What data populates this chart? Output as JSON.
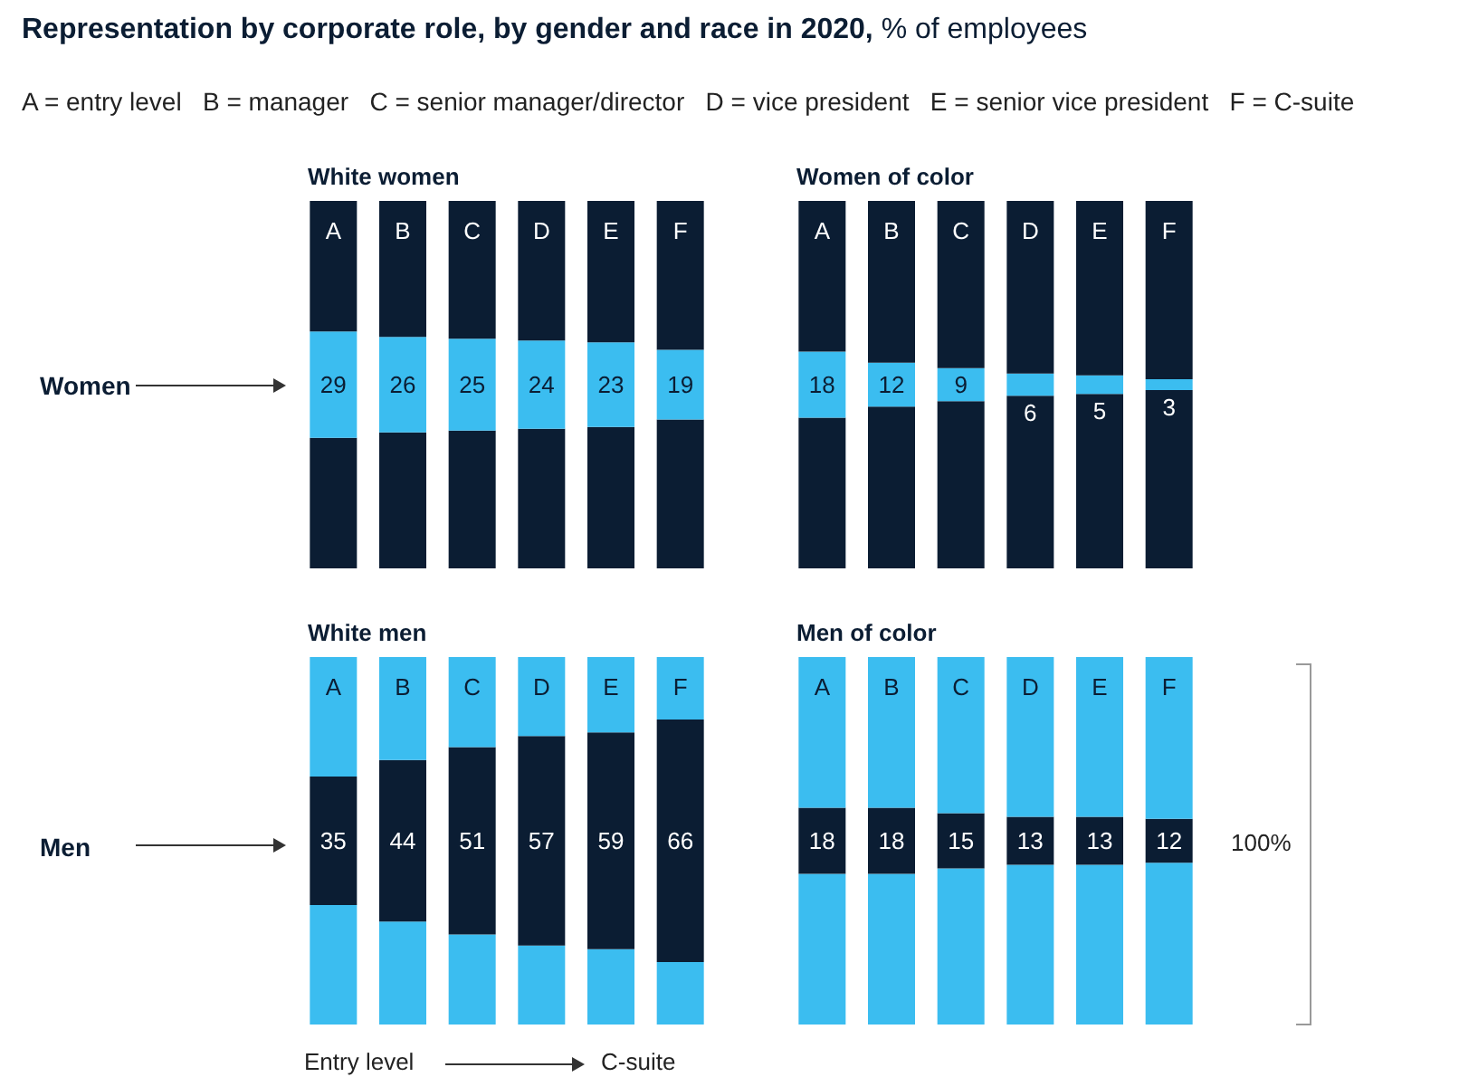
{
  "chart_data": [
    {
      "type": "bar",
      "stacked": true,
      "title": "White women",
      "categories": [
        "A",
        "B",
        "C",
        "D",
        "E",
        "F"
      ],
      "series": [
        {
          "color": "#0b1d33",
          "values": [
            35.5,
            37,
            37.5,
            38,
            38.5,
            40.5
          ]
        },
        {
          "color": "#3bbdf0",
          "values": [
            29,
            26,
            25,
            24,
            23,
            19
          ],
          "value_labels": [
            "29",
            "26",
            "25",
            "24",
            "23",
            "19"
          ]
        },
        {
          "color": "#0b1d33",
          "values": [
            35.5,
            37,
            37.5,
            38,
            38.5,
            40.5
          ]
        }
      ],
      "ylim": [
        0,
        100
      ],
      "tick_labels": "x",
      "annotations": [
        "Representation by corporate role, by gender and race in 2020,",
        "% of employees",
        "A = entry level   B = manager   C = senior manager/director   D = vice president   E = senior vice president   F = C-suite",
        "Women"
      ]
    },
    {
      "type": "bar",
      "stacked": true,
      "title": "Women of color",
      "categories": [
        "A",
        "B",
        "C",
        "D",
        "E",
        "F"
      ],
      "series": [
        {
          "color": "#0b1d33",
          "values": [
            41,
            44,
            45.5,
            47,
            47.5,
            48.5
          ]
        },
        {
          "color": "#3bbdf0",
          "values": [
            18,
            12,
            9,
            6,
            5,
            3
          ],
          "value_labels": [
            "18",
            "12",
            "9",
            "6",
            "5",
            "3"
          ]
        },
        {
          "color": "#0b1d33",
          "values": [
            41,
            44,
            45.5,
            47,
            47.5,
            48.5
          ]
        }
      ],
      "ylim": [
        0,
        100
      ],
      "tick_labels": "x"
    },
    {
      "type": "bar",
      "stacked": true,
      "title": "White men",
      "categories": [
        "A",
        "B",
        "C",
        "D",
        "E",
        "F"
      ],
      "series": [
        {
          "color": "#3bbdf0",
          "values": [
            32.5,
            28,
            24.5,
            21.5,
            20.5,
            17
          ]
        },
        {
          "color": "#0b1d33",
          "values": [
            35,
            44,
            51,
            57,
            59,
            66
          ],
          "value_labels": [
            "35",
            "44",
            "51",
            "57",
            "59",
            "66"
          ]
        },
        {
          "color": "#3bbdf0",
          "values": [
            32.5,
            28,
            24.5,
            21.5,
            20.5,
            17
          ]
        }
      ],
      "ylim": [
        0,
        100
      ],
      "tick_labels": "x",
      "annotations": [
        "Men",
        "Entry level",
        "C-suite"
      ]
    },
    {
      "type": "bar",
      "stacked": true,
      "title": "Men of color",
      "categories": [
        "A",
        "B",
        "C",
        "D",
        "E",
        "F"
      ],
      "series": [
        {
          "color": "#3bbdf0",
          "values": [
            41,
            41,
            42.5,
            43.5,
            43.5,
            44
          ]
        },
        {
          "color": "#0b1d33",
          "values": [
            18,
            18,
            15,
            13,
            13,
            12
          ],
          "value_labels": [
            "18",
            "18",
            "15",
            "13",
            "13",
            "12"
          ]
        },
        {
          "color": "#3bbdf0",
          "values": [
            41,
            41,
            42.5,
            43.5,
            43.5,
            44
          ]
        }
      ],
      "ylim": [
        0,
        100
      ],
      "tick_labels": "x",
      "annotations": [
        "100%"
      ]
    }
  ]
}
